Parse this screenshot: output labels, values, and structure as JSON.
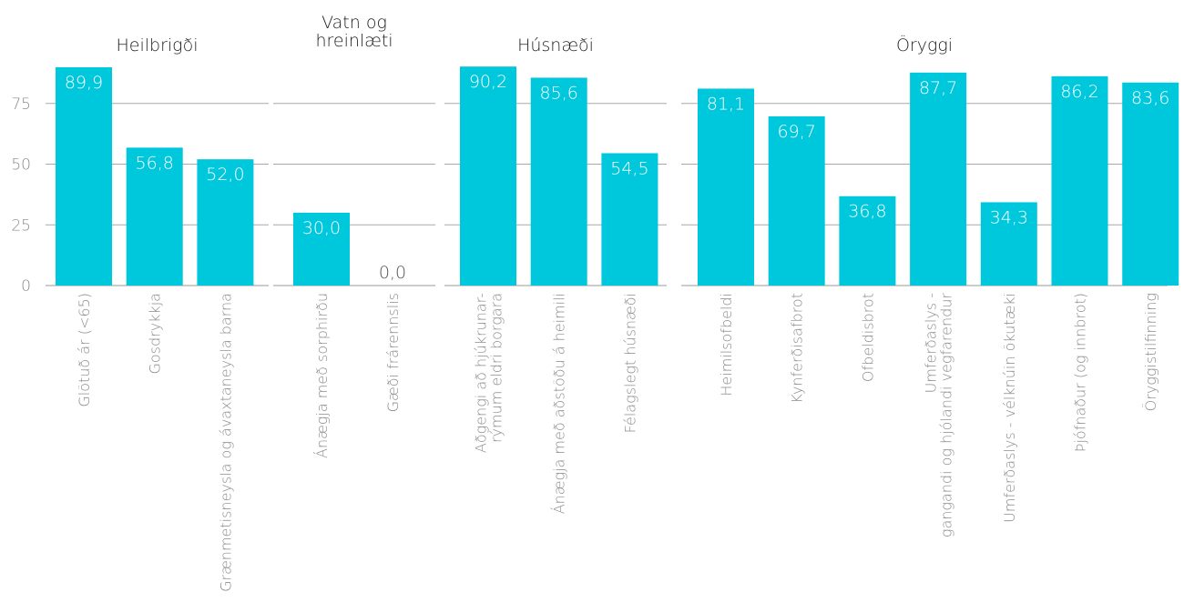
{
  "chart_data": {
    "type": "bar",
    "ylim": [
      0,
      100
    ],
    "yticks": [
      0,
      25,
      50,
      75
    ],
    "grid": true,
    "bar_color": "#00c8dc",
    "panels": [
      {
        "title": [
          "Heilbrigði"
        ],
        "categories": [
          [
            "Glötuð ár (<65)"
          ],
          [
            "Gosdrykkja"
          ],
          [
            "Grænmetisneysla og ávaxtaneysla barna"
          ]
        ],
        "values": [
          89.9,
          56.8,
          52.0
        ],
        "value_labels": [
          "89,9",
          "56,8",
          "52,0"
        ]
      },
      {
        "title": [
          "Vatn og",
          "hreinlæti"
        ],
        "categories": [
          [
            "Ánægja með sorphirðu"
          ],
          [
            "Gæði frárennslis"
          ]
        ],
        "values": [
          30.0,
          0.0
        ],
        "value_labels": [
          "30,0",
          "0,0"
        ]
      },
      {
        "title": [
          "Húsnæði"
        ],
        "categories": [
          [
            "Aðgengi að hjúkrunar-",
            "rýmum eldri borgara"
          ],
          [
            "Ánægja með aðstöðu á heimili"
          ],
          [
            "Félagslegt húsnæði"
          ]
        ],
        "values": [
          90.2,
          85.6,
          54.5
        ],
        "value_labels": [
          "90,2",
          "85,6",
          "54,5"
        ]
      },
      {
        "title": [
          "Öryggi"
        ],
        "categories": [
          [
            "Heimilsofbeldi"
          ],
          [
            "Kynferðisafbrot"
          ],
          [
            "Ofbeldisbrot"
          ],
          [
            "Umferðaslys -",
            "gangandi og hjólandi vegfarendur"
          ],
          [
            "Umferðaslys - vélknúin ökutæki"
          ],
          [
            "Þjófnaður (og innbrot)"
          ],
          [
            "Öryggistilfinning"
          ]
        ],
        "values": [
          81.1,
          69.7,
          36.8,
          87.7,
          34.3,
          86.2,
          83.6
        ],
        "value_labels": [
          "81,1",
          "69,7",
          "36,8",
          "87,7",
          "34,3",
          "86,2",
          "83,6"
        ]
      }
    ]
  }
}
